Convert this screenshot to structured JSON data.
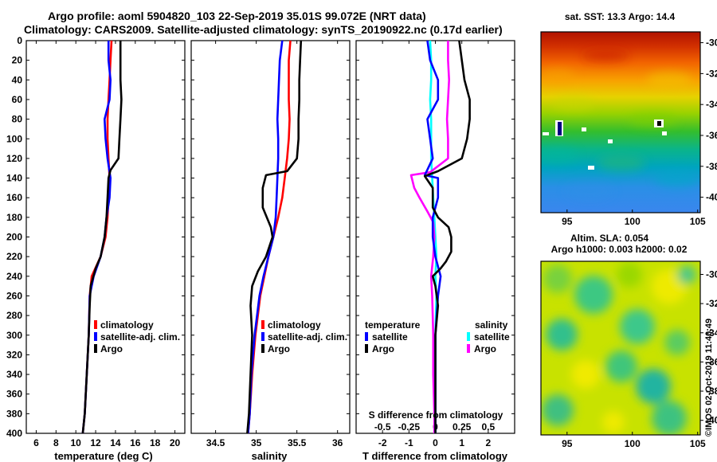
{
  "header": {
    "line1": "Argo profile: aoml 5904820_103 22-Sep-2019 35.01S 99.072E (NRT data)",
    "line2": "Climatology: CARS2009. Satellite-adjusted climatology: synTS_20190922.nc (0.17d earlier)"
  },
  "credit": "©IMOS 02-Oct-2019 11:40:49",
  "colors": {
    "red": "#ff0000",
    "blue": "#0000ff",
    "black": "#000000",
    "cyan": "#00ffff",
    "magenta": "#ff00ff"
  },
  "chart_data": [
    {
      "type": "line",
      "name": "temperature",
      "xlabel": "temperature (deg C)",
      "ylabel": "depth",
      "xlim": [
        5,
        21
      ],
      "ylim": [
        0,
        400
      ],
      "xticks": [
        "6",
        "8",
        "10",
        "12",
        "14",
        "16",
        "18",
        "20"
      ],
      "xtick_values": [
        6,
        8,
        10,
        12,
        14,
        16,
        18,
        20
      ],
      "yticks": [
        "0",
        "20",
        "40",
        "60",
        "80",
        "100",
        "120",
        "140",
        "160",
        "180",
        "200",
        "220",
        "240",
        "260",
        "280",
        "300",
        "320",
        "340",
        "360",
        "380",
        "400"
      ],
      "ytick_values": [
        0,
        20,
        40,
        60,
        80,
        100,
        120,
        140,
        160,
        180,
        200,
        220,
        240,
        260,
        280,
        300,
        320,
        340,
        360,
        380,
        400
      ],
      "legend": [
        "climatology",
        "satellite-adj. clim.",
        "Argo"
      ],
      "series": [
        {
          "name": "climatology",
          "color": "red",
          "points": [
            [
              13.6,
              0
            ],
            [
              13.5,
              20
            ],
            [
              13.4,
              40
            ],
            [
              13.3,
              60
            ],
            [
              13.2,
              80
            ],
            [
              13.2,
              100
            ],
            [
              13.3,
              120
            ],
            [
              13.4,
              140
            ],
            [
              13.3,
              160
            ],
            [
              13.2,
              180
            ],
            [
              13.0,
              200
            ],
            [
              12.5,
              220
            ],
            [
              11.6,
              240
            ],
            [
              11.4,
              260
            ],
            [
              11.3,
              300
            ],
            [
              11.1,
              340
            ],
            [
              10.9,
              380
            ],
            [
              10.7,
              400
            ]
          ]
        },
        {
          "name": "satellite-adj. clim.",
          "color": "blue",
          "points": [
            [
              13.3,
              0
            ],
            [
              13.3,
              20
            ],
            [
              13.5,
              40
            ],
            [
              13.4,
              60
            ],
            [
              12.9,
              80
            ],
            [
              13.0,
              100
            ],
            [
              13.2,
              120
            ],
            [
              13.5,
              140
            ],
            [
              13.4,
              160
            ],
            [
              13.1,
              180
            ],
            [
              12.9,
              200
            ],
            [
              12.5,
              220
            ],
            [
              11.8,
              240
            ],
            [
              11.4,
              260
            ],
            [
              11.3,
              300
            ],
            [
              11.1,
              340
            ],
            [
              10.9,
              380
            ],
            [
              10.7,
              400
            ]
          ]
        },
        {
          "name": "Argo",
          "color": "black",
          "points": [
            [
              14.5,
              0
            ],
            [
              14.5,
              20
            ],
            [
              14.5,
              40
            ],
            [
              14.6,
              60
            ],
            [
              14.5,
              80
            ],
            [
              14.4,
              100
            ],
            [
              14.3,
              120
            ],
            [
              13.5,
              132
            ],
            [
              13.3,
              140
            ],
            [
              13.2,
              160
            ],
            [
              13.1,
              180
            ],
            [
              12.9,
              200
            ],
            [
              12.5,
              220
            ],
            [
              12.0,
              232
            ],
            [
              11.5,
              250
            ],
            [
              11.4,
              270
            ],
            [
              11.3,
              300
            ],
            [
              11.1,
              340
            ],
            [
              10.9,
              380
            ],
            [
              10.7,
              400
            ]
          ]
        }
      ]
    },
    {
      "type": "line",
      "name": "salinity",
      "xlabel": "salinity",
      "xlim": [
        34.2,
        36.15
      ],
      "ylim": [
        0,
        400
      ],
      "xticks": [
        "34.5",
        "35",
        "35.5",
        "36"
      ],
      "xtick_values": [
        34.5,
        35,
        35.5,
        36
      ],
      "legend": [
        "climatology",
        "satellite-adj. clim.",
        "Argo"
      ],
      "series": [
        {
          "name": "climatology",
          "color": "red",
          "points": [
            [
              35.42,
              0
            ],
            [
              35.4,
              20
            ],
            [
              35.4,
              40
            ],
            [
              35.4,
              60
            ],
            [
              35.41,
              80
            ],
            [
              35.4,
              100
            ],
            [
              35.38,
              120
            ],
            [
              35.35,
              140
            ],
            [
              35.32,
              160
            ],
            [
              35.27,
              180
            ],
            [
              35.21,
              200
            ],
            [
              35.15,
              220
            ],
            [
              35.1,
              240
            ],
            [
              35.05,
              260
            ],
            [
              34.99,
              300
            ],
            [
              34.95,
              340
            ],
            [
              34.92,
              380
            ],
            [
              34.9,
              400
            ]
          ]
        },
        {
          "name": "satellite-adj. clim.",
          "color": "blue",
          "points": [
            [
              35.32,
              0
            ],
            [
              35.29,
              20
            ],
            [
              35.28,
              40
            ],
            [
              35.27,
              60
            ],
            [
              35.26,
              80
            ],
            [
              35.27,
              100
            ],
            [
              35.27,
              120
            ],
            [
              35.26,
              140
            ],
            [
              35.25,
              160
            ],
            [
              35.24,
              180
            ],
            [
              35.21,
              200
            ],
            [
              35.15,
              220
            ],
            [
              35.09,
              240
            ],
            [
              35.04,
              260
            ],
            [
              34.98,
              300
            ],
            [
              34.94,
              340
            ],
            [
              34.92,
              380
            ],
            [
              34.9,
              400
            ]
          ]
        },
        {
          "name": "Argo",
          "color": "black",
          "points": [
            [
              35.55,
              0
            ],
            [
              35.54,
              20
            ],
            [
              35.53,
              40
            ],
            [
              35.53,
              60
            ],
            [
              35.52,
              80
            ],
            [
              35.52,
              100
            ],
            [
              35.5,
              120
            ],
            [
              35.38,
              133
            ],
            [
              35.12,
              137
            ],
            [
              35.08,
              150
            ],
            [
              35.08,
              170
            ],
            [
              35.13,
              180
            ],
            [
              35.18,
              190
            ],
            [
              35.2,
              200
            ],
            [
              35.12,
              220
            ],
            [
              35.02,
              235
            ],
            [
              34.95,
              250
            ],
            [
              34.93,
              270
            ],
            [
              34.95,
              300
            ],
            [
              34.93,
              340
            ],
            [
              34.91,
              380
            ],
            [
              34.89,
              400
            ]
          ]
        }
      ]
    },
    {
      "type": "line",
      "name": "difference",
      "xlabel": "T difference from climatology",
      "xlabel2": "S difference from climatology",
      "xlim": [
        -3,
        3
      ],
      "ylim": [
        0,
        400
      ],
      "xticks": [
        "-2",
        "-1",
        "0",
        "1",
        "2"
      ],
      "xtick_values": [
        -2,
        -1,
        0,
        1,
        2
      ],
      "xticks2": [
        "-0.5",
        "-0.25",
        "0",
        "0.25",
        "0.5"
      ],
      "xtick2_values": [
        -0.5,
        -0.25,
        0,
        0.25,
        0.5
      ],
      "legend_temperature_title": "temperature",
      "legend_salinity_title": "salinity",
      "legend_temperature": [
        "satellite",
        "Argo"
      ],
      "legend_salinity": [
        "satellite",
        "Argo"
      ],
      "series": [
        {
          "name": "temperature satellite",
          "color": "blue",
          "points": [
            [
              -0.3,
              0
            ],
            [
              -0.2,
              20
            ],
            [
              0.1,
              40
            ],
            [
              0.1,
              60
            ],
            [
              -0.3,
              80
            ],
            [
              -0.2,
              100
            ],
            [
              -0.1,
              120
            ],
            [
              -0.4,
              137
            ],
            [
              0.1,
              140
            ],
            [
              0.1,
              160
            ],
            [
              -0.1,
              180
            ],
            [
              -0.1,
              200
            ],
            [
              0.0,
              220
            ],
            [
              0.2,
              240
            ],
            [
              0.1,
              260
            ],
            [
              0.0,
              300
            ],
            [
              0.0,
              340
            ],
            [
              0.0,
              380
            ],
            [
              0.0,
              400
            ]
          ]
        },
        {
          "name": "temperature Argo",
          "color": "black",
          "points": [
            [
              0.9,
              0
            ],
            [
              1.0,
              20
            ],
            [
              1.1,
              40
            ],
            [
              1.3,
              60
            ],
            [
              1.3,
              80
            ],
            [
              1.2,
              100
            ],
            [
              1.0,
              120
            ],
            [
              0.1,
              133
            ],
            [
              -0.4,
              138
            ],
            [
              -0.1,
              150
            ],
            [
              -0.1,
              170
            ],
            [
              0.1,
              180
            ],
            [
              0.5,
              190
            ],
            [
              0.6,
              200
            ],
            [
              0.6,
              215
            ],
            [
              0.4,
              225
            ],
            [
              0.2,
              232
            ],
            [
              -0.1,
              240
            ],
            [
              0.0,
              250
            ],
            [
              0.1,
              270
            ],
            [
              0.0,
              300
            ],
            [
              0.0,
              340
            ],
            [
              0.0,
              380
            ],
            [
              0.0,
              400
            ]
          ]
        },
        {
          "name": "salinity satellite",
          "color": "cyan",
          "points": [
            [
              -0.05,
              0
            ],
            [
              -0.04,
              20
            ],
            [
              -0.04,
              40
            ],
            [
              -0.05,
              60
            ],
            [
              -0.04,
              80
            ],
            [
              -0.04,
              100
            ],
            [
              -0.04,
              120
            ],
            [
              -0.03,
              140
            ],
            [
              -0.02,
              160
            ],
            [
              -0.01,
              180
            ],
            [
              0.0,
              200
            ],
            [
              0.01,
              220
            ],
            [
              0.0,
              240
            ],
            [
              0.01,
              260
            ],
            [
              0.0,
              300
            ],
            [
              0.0,
              340
            ],
            [
              0.0,
              380
            ],
            [
              0.0,
              400
            ]
          ]
        },
        {
          "name": "salinity Argo",
          "color": "magenta",
          "points": [
            [
              0.12,
              0
            ],
            [
              0.12,
              20
            ],
            [
              0.13,
              40
            ],
            [
              0.12,
              60
            ],
            [
              0.11,
              80
            ],
            [
              0.12,
              100
            ],
            [
              0.12,
              120
            ],
            [
              -0.05,
              134
            ],
            [
              -0.23,
              137
            ],
            [
              -0.2,
              150
            ],
            [
              -0.15,
              160
            ],
            [
              -0.07,
              175
            ],
            [
              -0.02,
              185
            ],
            [
              -0.01,
              200
            ],
            [
              -0.02,
              220
            ],
            [
              -0.04,
              240
            ],
            [
              -0.03,
              260
            ],
            [
              -0.02,
              300
            ],
            [
              -0.02,
              340
            ],
            [
              -0.01,
              380
            ],
            [
              -0.01,
              400
            ]
          ]
        }
      ]
    },
    {
      "type": "heatmap",
      "name": "sst map",
      "title": "sat. SST: 13.3 Argo: 14.4",
      "xlim": [
        93,
        105.2
      ],
      "ylim": [
        -41,
        -29.3
      ],
      "xticks": [
        "95",
        "100",
        "105"
      ],
      "xtick_values": [
        95,
        100,
        105
      ],
      "yticks": [
        "-30",
        "-32",
        "-34",
        "-36",
        "-38",
        "-40"
      ],
      "ytick_values": [
        -30,
        -32,
        -34,
        -36,
        -38,
        -40
      ]
    },
    {
      "type": "heatmap",
      "name": "sla map",
      "title_line1": "Altim. SLA: 0.054",
      "title_line2": "Argo h1000: 0.003 h2000: 0.02",
      "xlim": [
        93,
        105.2
      ],
      "ylim": [
        -41,
        -29.1
      ],
      "xticks": [
        "95",
        "100",
        "105"
      ],
      "xtick_values": [
        95,
        100,
        105
      ],
      "yticks": [
        "-30",
        "-32",
        "-34",
        "-36",
        "-38",
        "-40"
      ],
      "ytick_values": [
        -30,
        -32,
        -34,
        -36,
        -38,
        -40
      ]
    }
  ]
}
